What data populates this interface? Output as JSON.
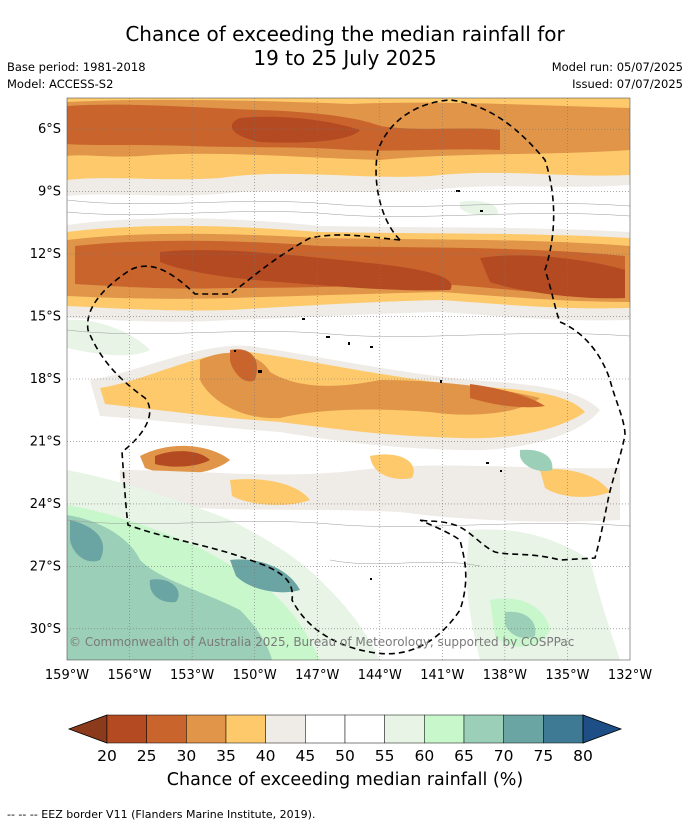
{
  "title": {
    "line1": "Chance of exceeding the median rainfall for",
    "line2": "19 to 25 July 2025"
  },
  "meta": {
    "base_period": "Base period: 1981-2018",
    "model": "Model: ACCESS-S2",
    "model_run": "Model run: 05/07/2025",
    "issued": "Issued: 07/07/2025"
  },
  "map": {
    "lat_labels": [
      "6°S",
      "9°S",
      "12°S",
      "15°S",
      "18°S",
      "21°S",
      "24°S",
      "27°S",
      "30°S"
    ],
    "lon_labels": [
      "159°W",
      "156°W",
      "153°W",
      "150°W",
      "147°W",
      "144°W",
      "141°W",
      "138°W",
      "135°W",
      "132°W"
    ],
    "lat_range": [
      -31.5,
      -4.5
    ],
    "lon_range": [
      -159,
      -132
    ],
    "copyright": "© Commonwealth of Australia 2025, Bureau of Meteorology, supported by COSPPac"
  },
  "colorbar": {
    "ticks": [
      "20",
      "25",
      "30",
      "35",
      "40",
      "45",
      "50",
      "55",
      "60",
      "65",
      "70",
      "75",
      "80"
    ],
    "colors": [
      "#8b3a1c",
      "#b34a22",
      "#c9642d",
      "#e09548",
      "#fdc96b",
      "#efebe6",
      "#ffffff",
      "#ffffff",
      "#e7f4e6",
      "#c8f7cc",
      "#9ccfb7",
      "#6aa5a3",
      "#3f7a94",
      "#1d4f86"
    ],
    "label": "Chance of exceeding median rainfall (%)"
  },
  "footer": "--  --  -- EEZ border V11 (Flanders Marine Institute, 2019)."
}
